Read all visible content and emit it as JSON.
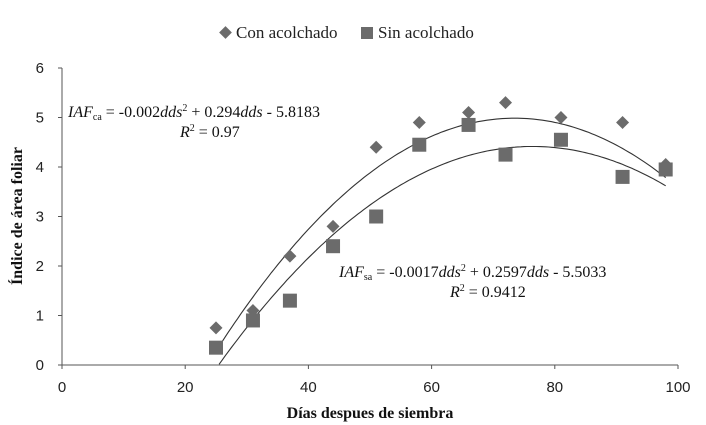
{
  "chart_data": {
    "type": "scatter",
    "title": "",
    "xlabel": "Días despues de siembra",
    "ylabel": "Índice de área foliar",
    "xlim": [
      0,
      100
    ],
    "ylim": [
      0,
      6
    ],
    "x_ticks": [
      "0",
      "20",
      "40",
      "60",
      "80",
      "100"
    ],
    "y_ticks": [
      "0",
      "1",
      "2",
      "3",
      "4",
      "5",
      "6"
    ],
    "grid": false,
    "legend_position": "top-center",
    "series": [
      {
        "name": "Con acolchado",
        "marker": "diamond",
        "color": "#6b6b6b",
        "x": [
          25,
          31,
          37,
          44,
          51,
          58,
          66,
          72,
          81,
          91,
          98
        ],
        "y": [
          0.75,
          1.1,
          2.2,
          2.8,
          4.4,
          4.9,
          5.1,
          5.3,
          5.0,
          4.9,
          4.05
        ],
        "trend": {
          "a": -0.002,
          "b": 0.294,
          "c": -5.8183
        }
      },
      {
        "name": "Sin acolchado",
        "marker": "square",
        "color": "#6b6b6b",
        "x": [
          25,
          31,
          37,
          44,
          51,
          58,
          66,
          72,
          81,
          91,
          98
        ],
        "y": [
          0.35,
          0.9,
          1.3,
          2.4,
          3.0,
          4.45,
          4.85,
          4.25,
          4.55,
          3.8,
          3.95
        ],
        "trend": {
          "a": -0.0017,
          "b": 0.2597,
          "c": -5.5033
        }
      }
    ],
    "annotations": {
      "eq_ca": {
        "iaf": "IAF",
        "sub": "ca",
        "eq_p1": " = -0.002",
        "dds": "dds",
        "sup": "2",
        "eq_p2": " + 0.294",
        "eq_p3": " - 5.8183",
        "r2_r": "R",
        "r2_sup": "2",
        "r2_val": " = 0.97"
      },
      "eq_sa": {
        "iaf": "IAF",
        "sub": "sa",
        "eq_p1": " = -0.0017",
        "dds": "dds",
        "sup": "2",
        "eq_p2": " + 0.2597",
        "eq_p3": " - 5.5033",
        "r2_r": "R",
        "r2_sup": "2",
        "r2_val": " = 0.9412"
      }
    }
  }
}
